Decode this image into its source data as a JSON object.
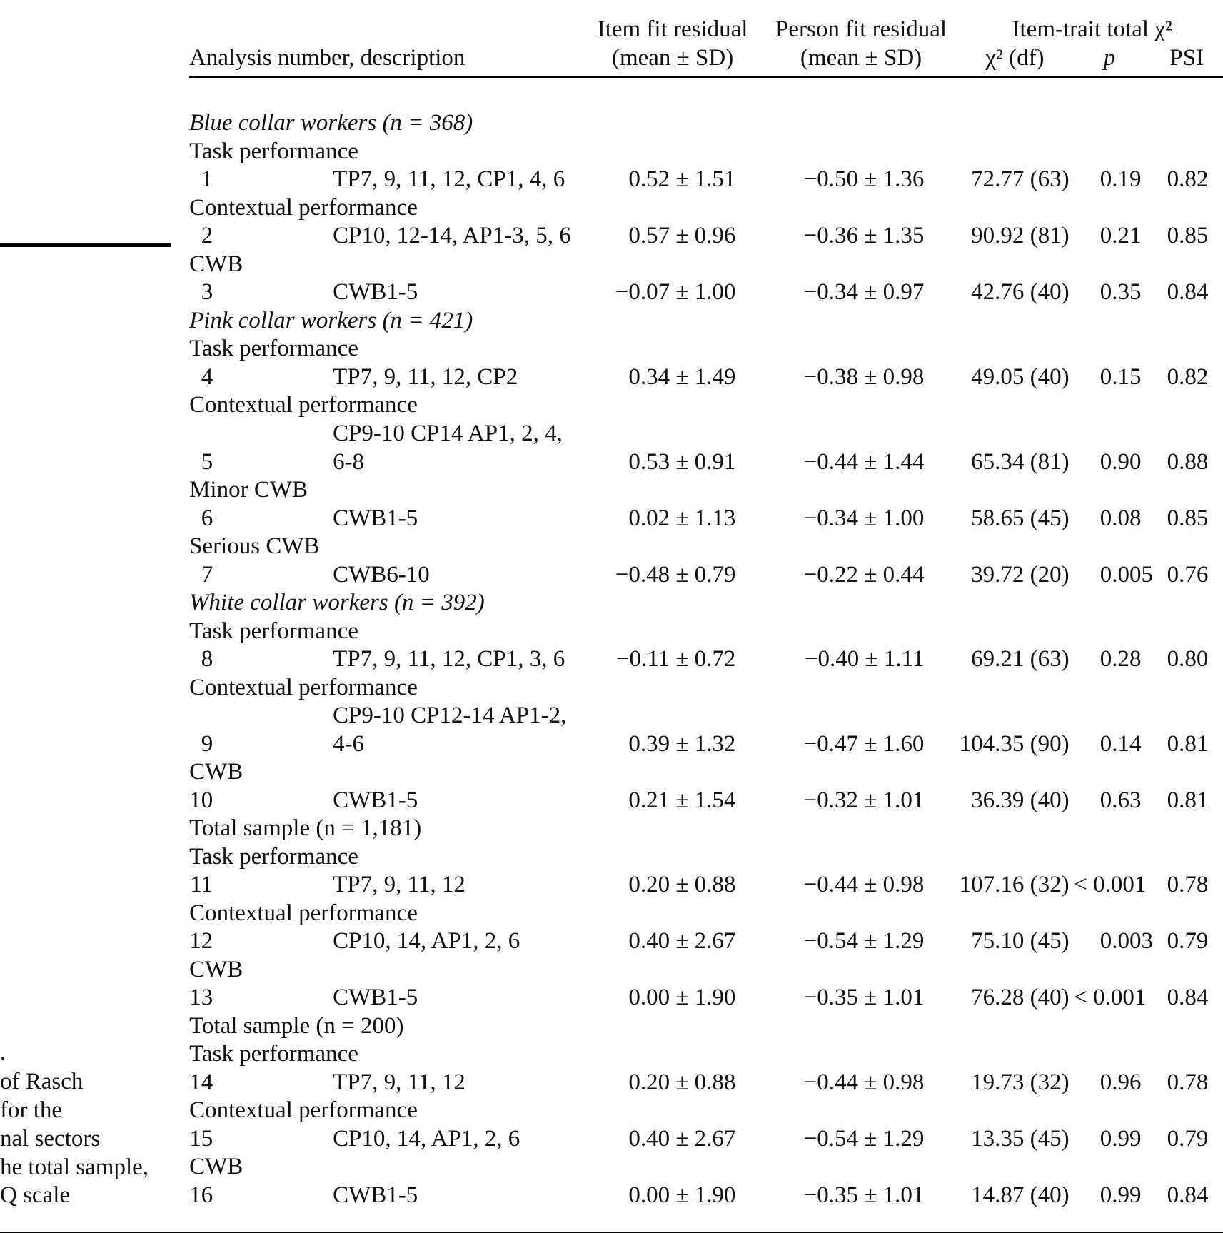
{
  "header": {
    "description": "Analysis number, description",
    "item_fit": [
      "Item fit residual",
      "(mean ± SD)"
    ],
    "person_fit": [
      "Person fit residual",
      "(mean ± SD)"
    ],
    "item_trait": "Item-trait total χ²",
    "chi2": "χ² (df)",
    "p": "p",
    "psi": "PSI"
  },
  "sidebar": [
    ".",
    "of Rasch",
    "for the",
    "nal sectors",
    "he total sample,",
    "Q scale"
  ],
  "table": {
    "rows": [
      {
        "group": "Blue collar workers (n = 368)"
      },
      {
        "subheading": "Task performance"
      },
      {
        "number": "1",
        "description": [
          "TP7, 9, 11, 12, CP1, 4, 6"
        ],
        "item_fit": "0.52 ± 1.51",
        "person_fit": "−0.50 ± 1.36",
        "chi2": "72.77 (63)",
        "p": "0.19",
        "psi": "0.82"
      },
      {
        "subheading": "Contextual performance"
      },
      {
        "number": "2",
        "description": [
          "CP10, 12-14, AP1-3, 5, 6"
        ],
        "item_fit": "0.57 ± 0.96",
        "person_fit": "−0.36 ± 1.35",
        "chi2": "90.92 (81)",
        "p": "0.21",
        "psi": "0.85"
      },
      {
        "subheading": "CWB"
      },
      {
        "number": "3",
        "description": [
          "CWB1-5"
        ],
        "item_fit": "−0.07 ± 1.00",
        "person_fit": "−0.34 ± 0.97",
        "chi2": "42.76 (40)",
        "p": "0.35",
        "psi": "0.84"
      },
      {
        "group": "Pink collar workers (n = 421)"
      },
      {
        "subheading": "Task performance"
      },
      {
        "number": "4",
        "description": [
          "TP7, 9, 11, 12, CP2"
        ],
        "item_fit": "0.34 ± 1.49",
        "person_fit": "−0.38 ± 0.98",
        "chi2": "49.05 (40)",
        "p": "0.15",
        "psi": "0.82"
      },
      {
        "subheading": "Contextual performance"
      },
      {
        "number": "5",
        "description": [
          "CP9-10 CP14 AP1, 2, 4,",
          "6-8"
        ],
        "item_fit": "0.53 ± 0.91",
        "person_fit": "−0.44 ± 1.44",
        "chi2": "65.34 (81)",
        "p": "0.90",
        "psi": "0.88"
      },
      {
        "subheading": "Minor CWB"
      },
      {
        "number": "6",
        "description": [
          "CWB1-5"
        ],
        "item_fit": "0.02 ± 1.13",
        "person_fit": "−0.34 ± 1.00",
        "chi2": "58.65 (45)",
        "p": "0.08",
        "psi": "0.85"
      },
      {
        "subheading": "Serious CWB"
      },
      {
        "number": "7",
        "description": [
          "CWB6-10"
        ],
        "item_fit": "−0.48 ± 0.79",
        "person_fit": "−0.22 ± 0.44",
        "chi2": "39.72 (20)",
        "p": "0.005",
        "psi": "0.76"
      },
      {
        "group": "White collar workers (n = 392)"
      },
      {
        "subheading": "Task performance"
      },
      {
        "number": "8",
        "description": [
          "TP7, 9, 11, 12, CP1, 3, 6"
        ],
        "item_fit": "−0.11 ± 0.72",
        "person_fit": "−0.40 ± 1.11",
        "chi2": "69.21 (63)",
        "p": "0.28",
        "psi": "0.80"
      },
      {
        "subheading": "Contextual performance"
      },
      {
        "number": "9",
        "description": [
          "CP9-10 CP12-14 AP1-2,",
          "4-6"
        ],
        "item_fit": "0.39 ± 1.32",
        "person_fit": "−0.47 ± 1.60",
        "chi2": "104.35 (90)",
        "p": "0.14",
        "psi": "0.81"
      },
      {
        "subheading": "CWB"
      },
      {
        "number": "10",
        "description": [
          "CWB1-5"
        ],
        "item_fit": "0.21 ± 1.54",
        "person_fit": "−0.32 ± 1.01",
        "chi2": "36.39 (40)",
        "p": "0.63",
        "psi": "0.81"
      },
      {
        "group": "Total sample (n = 1,181)"
      },
      {
        "subheading": "Task performance"
      },
      {
        "number": "11",
        "description": [
          "TP7, 9, 11, 12"
        ],
        "item_fit": "0.20 ± 0.88",
        "person_fit": "−0.44 ± 0.98",
        "chi2": "107.16 (32)",
        "p": "< 0.001",
        "psi": "0.78"
      },
      {
        "subheading": "Contextual performance"
      },
      {
        "number": "12",
        "description": [
          "CP10, 14, AP1, 2, 6"
        ],
        "item_fit": "0.40 ± 2.67",
        "person_fit": "−0.54 ± 1.29",
        "chi2": "75.10 (45)",
        "p": "0.003",
        "psi": "0.79"
      },
      {
        "subheading": "CWB"
      },
      {
        "number": "13",
        "description": [
          "CWB1-5"
        ],
        "item_fit": "0.00 ± 1.90",
        "person_fit": "−0.35 ± 1.01",
        "chi2": "76.28 (40)",
        "p": "< 0.001",
        "psi": "0.84"
      },
      {
        "group": "Total sample (n = 200)"
      },
      {
        "subheading": "Task performance"
      },
      {
        "number": "14",
        "description": [
          "TP7, 9, 11, 12"
        ],
        "item_fit": "0.20 ± 0.88",
        "person_fit": "−0.44 ± 0.98",
        "chi2": "19.73 (32)",
        "p": "0.96",
        "psi": "0.78"
      },
      {
        "subheading": "Contextual performance"
      },
      {
        "number": "15",
        "description": [
          "CP10, 14, AP1, 2, 6"
        ],
        "item_fit": "0.40 ± 2.67",
        "person_fit": "−0.54 ± 1.29",
        "chi2": "13.35 (45)",
        "p": "0.99",
        "psi": "0.79"
      },
      {
        "subheading": "CWB"
      },
      {
        "number": "16",
        "description": [
          "CWB1-5"
        ],
        "item_fit": "0.00 ± 1.90",
        "person_fit": "−0.35 ± 1.01",
        "chi2": "14.87 (40)",
        "p": "0.99",
        "psi": "0.84"
      }
    ]
  }
}
